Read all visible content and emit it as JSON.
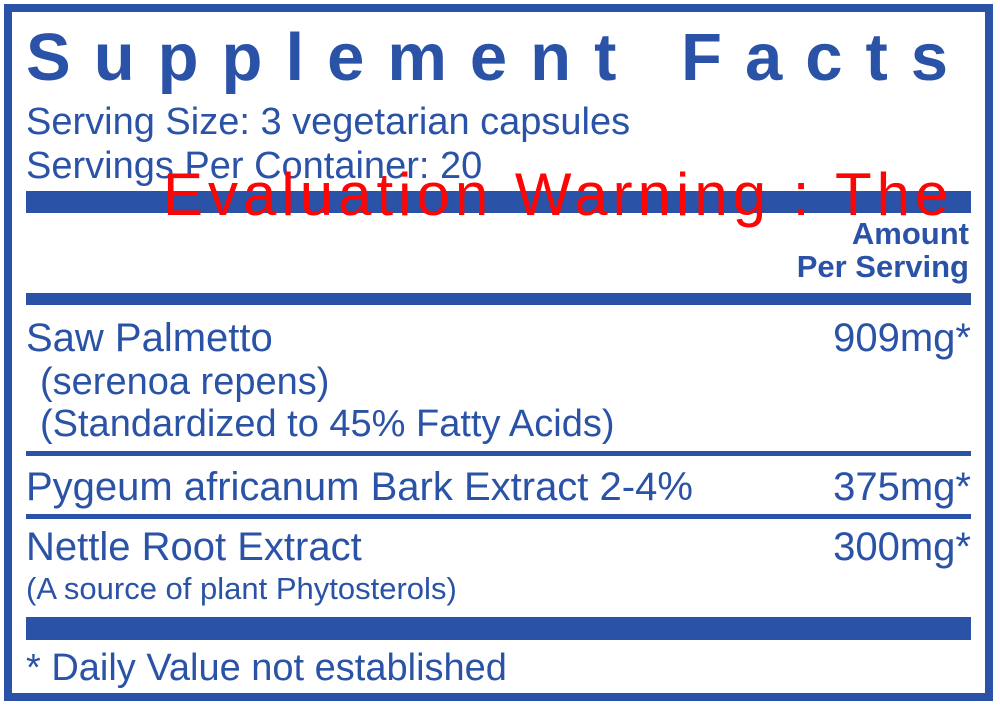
{
  "colors": {
    "brand_blue": "#2a52a6",
    "watermark_red": "#fb0505"
  },
  "panel": {
    "title": "Supplement Facts",
    "serving_size": "Serving Size: 3 vegetarian capsules",
    "servings_per_container": "Servings Per Container: 20",
    "amount_header": {
      "line1": "Amount",
      "line2": "Per Serving"
    },
    "rows": [
      {
        "name": "Saw Palmetto",
        "amount": "909mg*",
        "subline1": "(serenoa repens)",
        "subline2": "(Standardized to 45% Fatty Acids)"
      },
      {
        "name": "Pygeum africanum Bark Extract 2-4%",
        "amount": "375mg*"
      },
      {
        "name": "Nettle Root Extract",
        "amount": "300mg*",
        "subline1": "(A source of plant Phytosterols)"
      }
    ],
    "footnote": "* Daily Value not established"
  },
  "watermark": {
    "text": "Evaluation Warning : The"
  }
}
